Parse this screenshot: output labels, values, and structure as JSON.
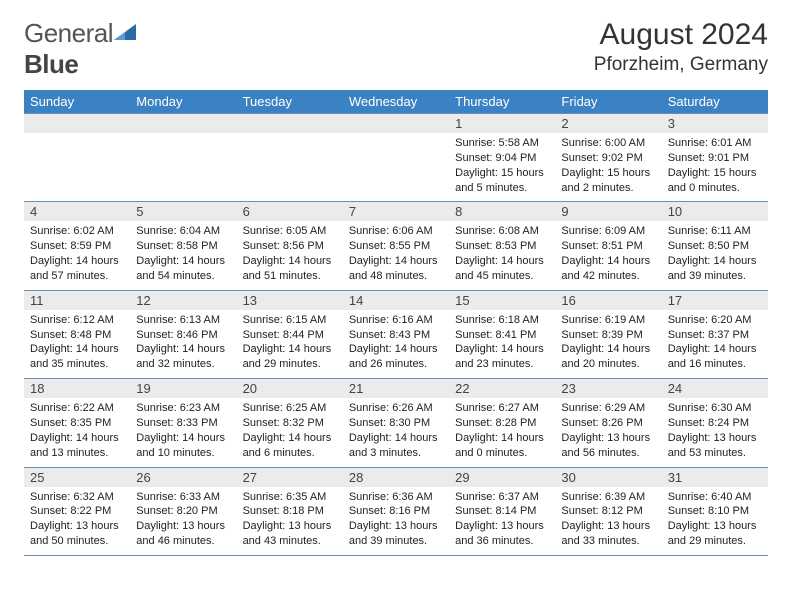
{
  "logo": {
    "text1": "General",
    "text2": "Blue"
  },
  "title": {
    "month": "August 2024",
    "location": "Pforzheim, Germany"
  },
  "colors": {
    "header_bg": "#3b82c4",
    "header_fg": "#ffffff",
    "daynum_bg": "#ebebeb",
    "border": "#6a8fb0",
    "tri": "#2f6aa8"
  },
  "weekdays": [
    "Sunday",
    "Monday",
    "Tuesday",
    "Wednesday",
    "Thursday",
    "Friday",
    "Saturday"
  ],
  "weeks": [
    [
      {
        "num": "",
        "lines": [
          "",
          "",
          "",
          ""
        ]
      },
      {
        "num": "",
        "lines": [
          "",
          "",
          "",
          ""
        ]
      },
      {
        "num": "",
        "lines": [
          "",
          "",
          "",
          ""
        ]
      },
      {
        "num": "",
        "lines": [
          "",
          "",
          "",
          ""
        ]
      },
      {
        "num": "1",
        "lines": [
          "Sunrise: 5:58 AM",
          "Sunset: 9:04 PM",
          "Daylight: 15 hours",
          "and 5 minutes."
        ]
      },
      {
        "num": "2",
        "lines": [
          "Sunrise: 6:00 AM",
          "Sunset: 9:02 PM",
          "Daylight: 15 hours",
          "and 2 minutes."
        ]
      },
      {
        "num": "3",
        "lines": [
          "Sunrise: 6:01 AM",
          "Sunset: 9:01 PM",
          "Daylight: 15 hours",
          "and 0 minutes."
        ]
      }
    ],
    [
      {
        "num": "4",
        "lines": [
          "Sunrise: 6:02 AM",
          "Sunset: 8:59 PM",
          "Daylight: 14 hours",
          "and 57 minutes."
        ]
      },
      {
        "num": "5",
        "lines": [
          "Sunrise: 6:04 AM",
          "Sunset: 8:58 PM",
          "Daylight: 14 hours",
          "and 54 minutes."
        ]
      },
      {
        "num": "6",
        "lines": [
          "Sunrise: 6:05 AM",
          "Sunset: 8:56 PM",
          "Daylight: 14 hours",
          "and 51 minutes."
        ]
      },
      {
        "num": "7",
        "lines": [
          "Sunrise: 6:06 AM",
          "Sunset: 8:55 PM",
          "Daylight: 14 hours",
          "and 48 minutes."
        ]
      },
      {
        "num": "8",
        "lines": [
          "Sunrise: 6:08 AM",
          "Sunset: 8:53 PM",
          "Daylight: 14 hours",
          "and 45 minutes."
        ]
      },
      {
        "num": "9",
        "lines": [
          "Sunrise: 6:09 AM",
          "Sunset: 8:51 PM",
          "Daylight: 14 hours",
          "and 42 minutes."
        ]
      },
      {
        "num": "10",
        "lines": [
          "Sunrise: 6:11 AM",
          "Sunset: 8:50 PM",
          "Daylight: 14 hours",
          "and 39 minutes."
        ]
      }
    ],
    [
      {
        "num": "11",
        "lines": [
          "Sunrise: 6:12 AM",
          "Sunset: 8:48 PM",
          "Daylight: 14 hours",
          "and 35 minutes."
        ]
      },
      {
        "num": "12",
        "lines": [
          "Sunrise: 6:13 AM",
          "Sunset: 8:46 PM",
          "Daylight: 14 hours",
          "and 32 minutes."
        ]
      },
      {
        "num": "13",
        "lines": [
          "Sunrise: 6:15 AM",
          "Sunset: 8:44 PM",
          "Daylight: 14 hours",
          "and 29 minutes."
        ]
      },
      {
        "num": "14",
        "lines": [
          "Sunrise: 6:16 AM",
          "Sunset: 8:43 PM",
          "Daylight: 14 hours",
          "and 26 minutes."
        ]
      },
      {
        "num": "15",
        "lines": [
          "Sunrise: 6:18 AM",
          "Sunset: 8:41 PM",
          "Daylight: 14 hours",
          "and 23 minutes."
        ]
      },
      {
        "num": "16",
        "lines": [
          "Sunrise: 6:19 AM",
          "Sunset: 8:39 PM",
          "Daylight: 14 hours",
          "and 20 minutes."
        ]
      },
      {
        "num": "17",
        "lines": [
          "Sunrise: 6:20 AM",
          "Sunset: 8:37 PM",
          "Daylight: 14 hours",
          "and 16 minutes."
        ]
      }
    ],
    [
      {
        "num": "18",
        "lines": [
          "Sunrise: 6:22 AM",
          "Sunset: 8:35 PM",
          "Daylight: 14 hours",
          "and 13 minutes."
        ]
      },
      {
        "num": "19",
        "lines": [
          "Sunrise: 6:23 AM",
          "Sunset: 8:33 PM",
          "Daylight: 14 hours",
          "and 10 minutes."
        ]
      },
      {
        "num": "20",
        "lines": [
          "Sunrise: 6:25 AM",
          "Sunset: 8:32 PM",
          "Daylight: 14 hours",
          "and 6 minutes."
        ]
      },
      {
        "num": "21",
        "lines": [
          "Sunrise: 6:26 AM",
          "Sunset: 8:30 PM",
          "Daylight: 14 hours",
          "and 3 minutes."
        ]
      },
      {
        "num": "22",
        "lines": [
          "Sunrise: 6:27 AM",
          "Sunset: 8:28 PM",
          "Daylight: 14 hours",
          "and 0 minutes."
        ]
      },
      {
        "num": "23",
        "lines": [
          "Sunrise: 6:29 AM",
          "Sunset: 8:26 PM",
          "Daylight: 13 hours",
          "and 56 minutes."
        ]
      },
      {
        "num": "24",
        "lines": [
          "Sunrise: 6:30 AM",
          "Sunset: 8:24 PM",
          "Daylight: 13 hours",
          "and 53 minutes."
        ]
      }
    ],
    [
      {
        "num": "25",
        "lines": [
          "Sunrise: 6:32 AM",
          "Sunset: 8:22 PM",
          "Daylight: 13 hours",
          "and 50 minutes."
        ]
      },
      {
        "num": "26",
        "lines": [
          "Sunrise: 6:33 AM",
          "Sunset: 8:20 PM",
          "Daylight: 13 hours",
          "and 46 minutes."
        ]
      },
      {
        "num": "27",
        "lines": [
          "Sunrise: 6:35 AM",
          "Sunset: 8:18 PM",
          "Daylight: 13 hours",
          "and 43 minutes."
        ]
      },
      {
        "num": "28",
        "lines": [
          "Sunrise: 6:36 AM",
          "Sunset: 8:16 PM",
          "Daylight: 13 hours",
          "and 39 minutes."
        ]
      },
      {
        "num": "29",
        "lines": [
          "Sunrise: 6:37 AM",
          "Sunset: 8:14 PM",
          "Daylight: 13 hours",
          "and 36 minutes."
        ]
      },
      {
        "num": "30",
        "lines": [
          "Sunrise: 6:39 AM",
          "Sunset: 8:12 PM",
          "Daylight: 13 hours",
          "and 33 minutes."
        ]
      },
      {
        "num": "31",
        "lines": [
          "Sunrise: 6:40 AM",
          "Sunset: 8:10 PM",
          "Daylight: 13 hours",
          "and 29 minutes."
        ]
      }
    ]
  ]
}
